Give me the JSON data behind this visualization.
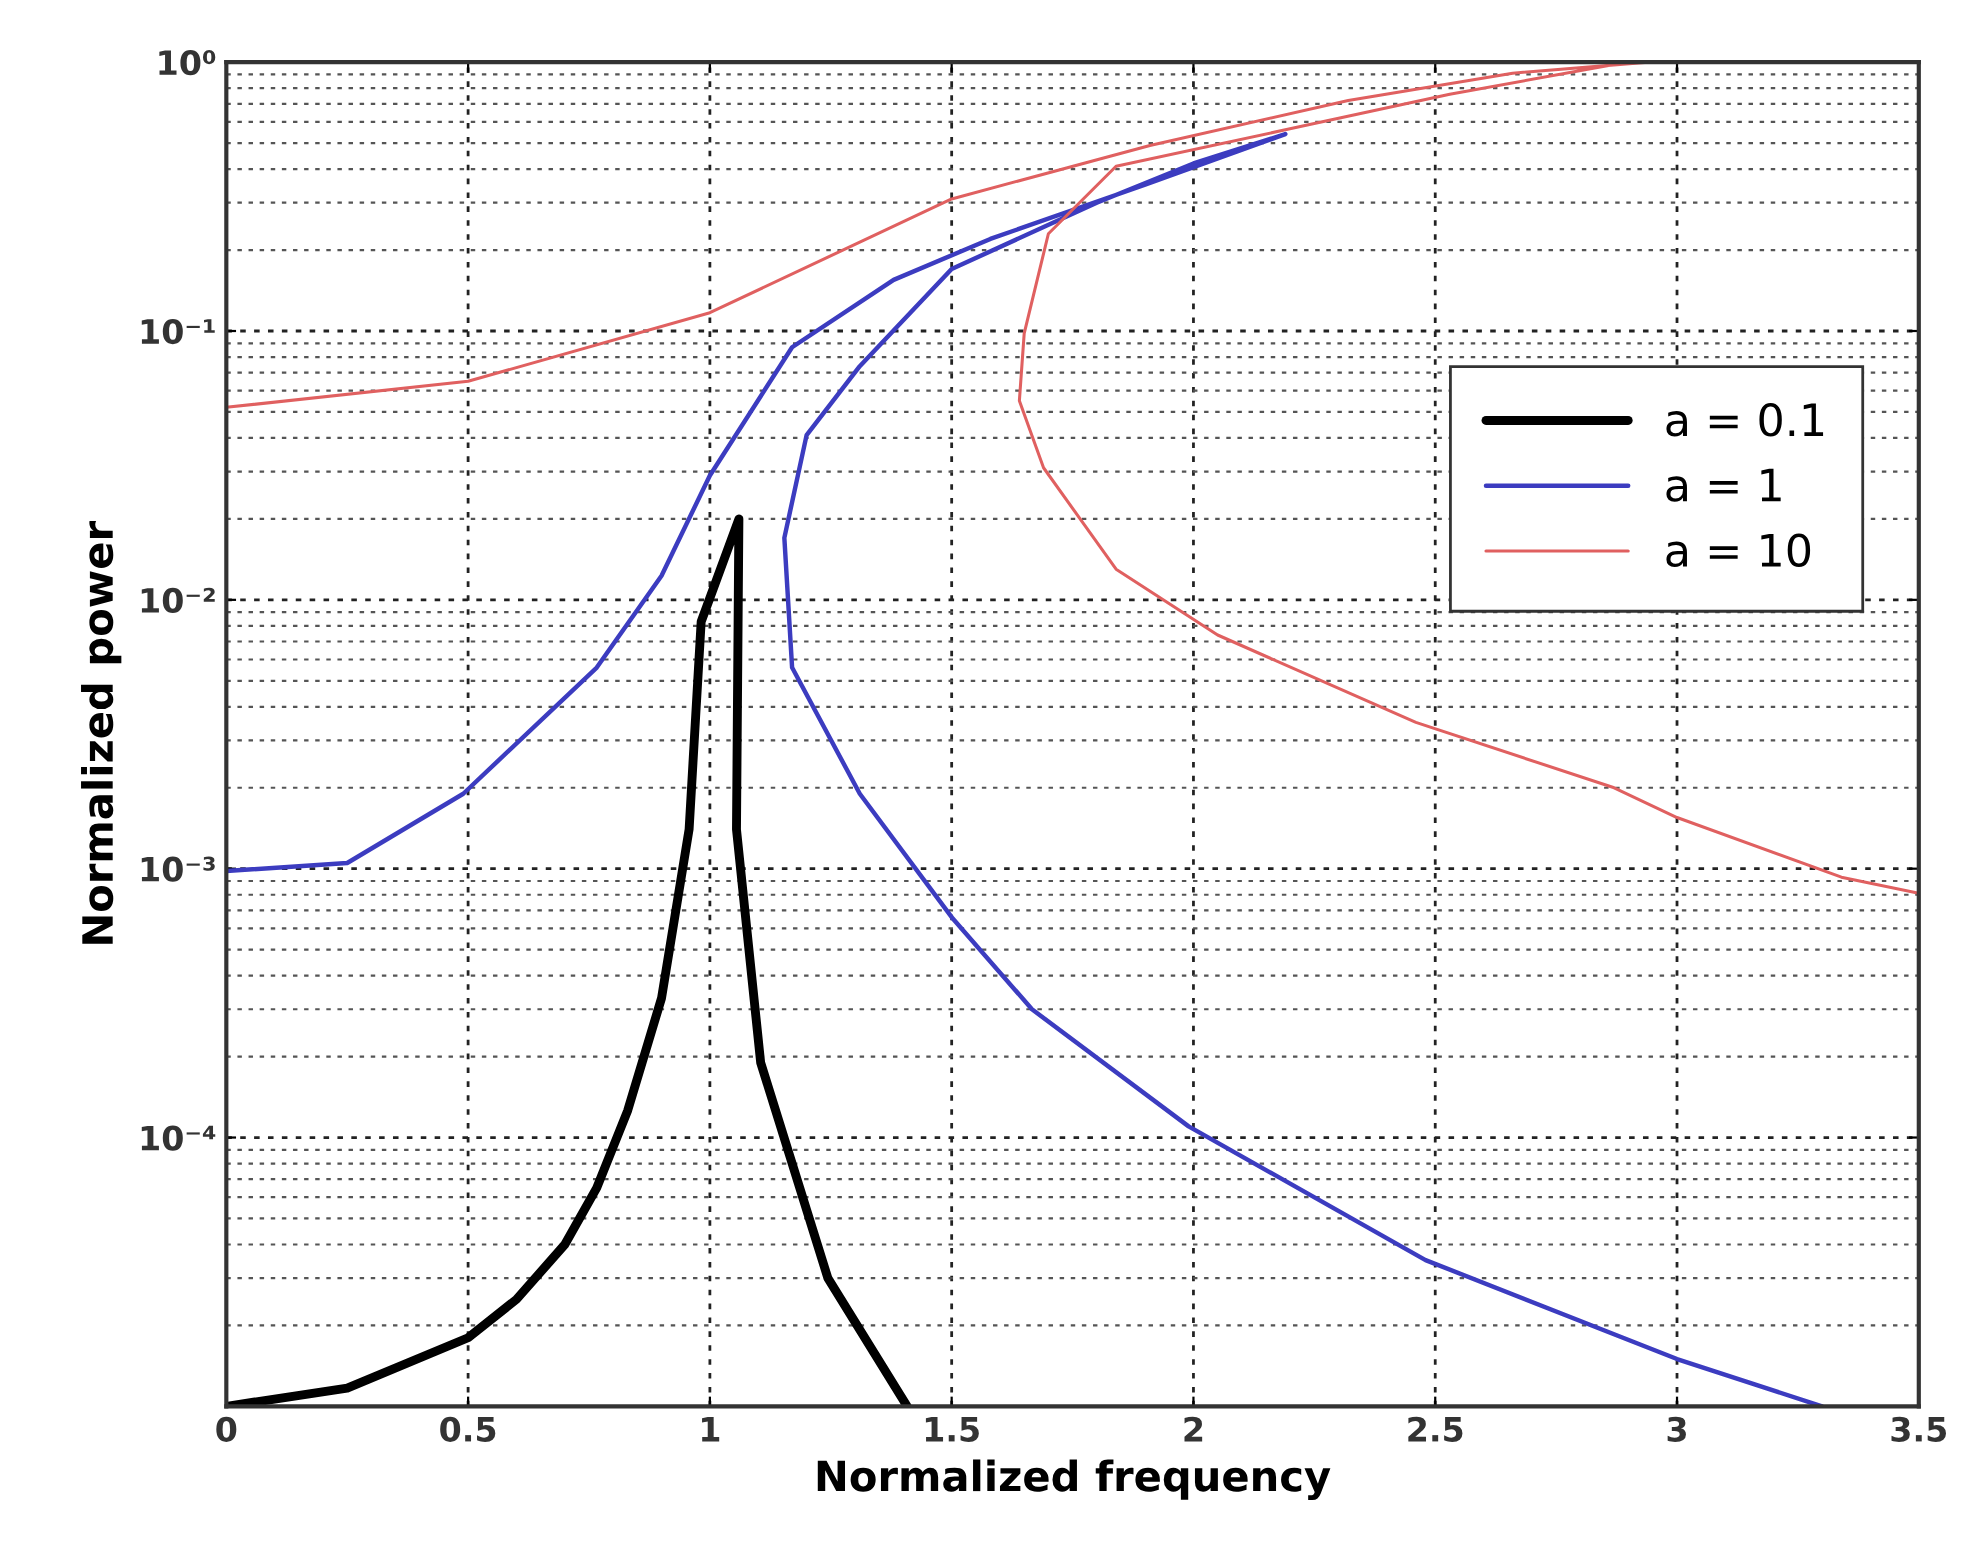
{
  "chart_data": {
    "type": "line",
    "xlabel": "Normalized frequency",
    "ylabel": "Normalized power",
    "log": "y",
    "grid": true,
    "legend": "top right",
    "marker": "none",
    "line_style": "solid",
    "xlim": [
      0,
      3.5
    ],
    "xticks": [
      0,
      0.5,
      1,
      1.5,
      2,
      2.5,
      3,
      3.5
    ],
    "ylim": [
      1e-05,
      1
    ],
    "yticks": [
      {
        "value": 1e-05,
        "label": null
      },
      {
        "value": 0.0001,
        "label": "10⁻⁴"
      },
      {
        "value": 0.001,
        "label": "10⁻³"
      },
      {
        "value": 0.01,
        "label": "10⁻²"
      },
      {
        "value": 0.1,
        "label": "10⁻¹"
      },
      {
        "value": 1,
        "label": "10⁰"
      }
    ],
    "series": [
      {
        "name": "a = 0.1",
        "color": "#000000",
        "x": [
          0,
          0.25,
          0.5,
          0.6,
          0.7,
          0.766,
          0.83,
          0.9,
          0.957,
          0.982,
          1.06,
          1.055,
          1.105,
          1.244,
          1.408
        ],
        "values": [
          1e-05,
          1.17e-05,
          1.8e-05,
          2.5e-05,
          4e-05,
          6.5e-05,
          0.000126,
          0.00033,
          0.0014,
          0.0083,
          0.02,
          0.0014,
          0.00019,
          3e-05,
          1e-05
        ]
      },
      {
        "name": "a = 1",
        "color": "#3c3cc0",
        "x": [
          0,
          0.25,
          0.49,
          0.766,
          0.9,
          1.0,
          1.17,
          1.38,
          1.58,
          1.9,
          2.19,
          2.0,
          1.8,
          1.5,
          1.31,
          1.2,
          1.154,
          1.17,
          1.31,
          1.5,
          1.666,
          1.99,
          2.48,
          3.0,
          3.3
        ],
        "values": [
          0.00098,
          0.00105,
          0.0019,
          0.0056,
          0.0123,
          0.029,
          0.087,
          0.155,
          0.22,
          0.35,
          0.54,
          0.42,
          0.3,
          0.17,
          0.074,
          0.041,
          0.017,
          0.0056,
          0.0019,
          0.00066,
          0.0003,
          0.00011,
          3.5e-05,
          1.5e-05,
          1e-05
        ]
      },
      {
        "name": "a = 10",
        "color": "#e06060",
        "x": [
          0,
          0.5,
          1.0,
          1.5,
          1.91,
          2.32,
          2.66,
          2.94,
          2.87,
          2.53,
          2.19,
          1.84,
          1.7,
          1.65,
          1.64,
          1.69,
          1.84,
          2.05,
          2.46,
          2.87,
          3.0,
          3.34,
          3.5
        ],
        "values": [
          0.052,
          0.065,
          0.117,
          0.31,
          0.49,
          0.72,
          0.91,
          1.0,
          0.98,
          0.76,
          0.56,
          0.41,
          0.23,
          0.098,
          0.055,
          0.031,
          0.013,
          0.0074,
          0.0035,
          0.002,
          0.00155,
          0.00093,
          0.00081
        ]
      }
    ]
  }
}
